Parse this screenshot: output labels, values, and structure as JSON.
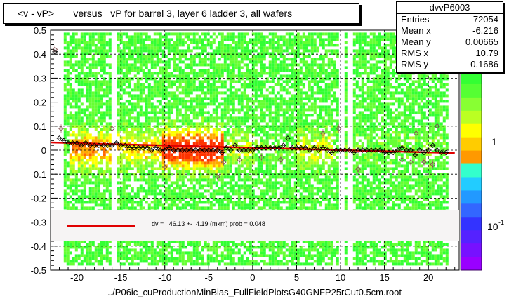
{
  "title": "<v - vP>       versus   vP for barrel 3, layer 6 ladder 3, all wafers",
  "stats": {
    "name": "dvvP6003",
    "rows": [
      {
        "label": "Entries",
        "value": "72054"
      },
      {
        "label": "Mean x",
        "value": "-6.216"
      },
      {
        "label": "Mean y",
        "value": "0.00665"
      },
      {
        "label": "RMS x",
        "value": "10.79"
      },
      {
        "label": "RMS y",
        "value": "0.1686"
      }
    ]
  },
  "fit": {
    "text": "dv =   46.13 +-  4.19 (mkm) prob = 0.048",
    "line_color": "#e00000"
  },
  "footer": "../P06ic_cuProductionMinBias_FullFieldPlotsG40GNFP25rCut0.5cm.root",
  "colorbar": {
    "labels": [
      "1",
      "10"
    ],
    "label_superscript": "-1"
  },
  "chart_data": {
    "type": "heatmap",
    "title": "<v - vP>       versus   vP for barrel 3, layer 6 ladder 3, all wafers",
    "xlabel": "",
    "ylabel": "",
    "xlim": [
      -23,
      23.5
    ],
    "ylim": [
      -0.5,
      0.5
    ],
    "xticks": [
      "-20",
      "-15",
      "-10",
      "-5",
      "0",
      "5",
      "10",
      "15",
      "20"
    ],
    "xtick_values": [
      -20,
      -15,
      -10,
      -5,
      0,
      5,
      10,
      15,
      20
    ],
    "yticks": [
      "0.5",
      "0.4",
      "0.3",
      "0.2",
      "0.1",
      "0",
      "-0.1",
      "-0.2",
      "-0.3",
      "-0.4",
      "-0.5"
    ],
    "ytick_values": [
      0.5,
      0.4,
      0.3,
      0.2,
      0.1,
      0,
      -0.1,
      -0.2,
      -0.3,
      -0.4,
      -0.5
    ],
    "grid": true,
    "heat_x_range": [
      -21.5,
      22
    ],
    "heat_y_range": [
      -0.48,
      0.49
    ],
    "heat_colors": [
      "#33ff33",
      "#66ff33",
      "#aaff22",
      "#ffff00",
      "#ffaa00",
      "#ff6600",
      "#ff3300"
    ],
    "fit_line": {
      "x": [
        -23,
        23
      ],
      "y": [
        0.032,
        -0.012
      ]
    },
    "profile": {
      "x": [
        -22.5,
        -22,
        -21.5,
        -21,
        -20.5,
        -20,
        -19.5,
        -19,
        -18.5,
        -18,
        -17.5,
        -17,
        -16.5,
        -16,
        -15.5,
        -15,
        -14.5,
        -14,
        -13.5,
        -13,
        -12.5,
        -12,
        -11.5,
        -11,
        -10.5,
        -10,
        -9.5,
        -9,
        -8.5,
        -8,
        -7.5,
        -7,
        -6.5,
        -6,
        -5.5,
        -5,
        -4.5,
        -4,
        -3.5,
        -3,
        -2.5,
        -2,
        -1.5,
        -1,
        -0.5,
        0,
        0.5,
        1,
        1.5,
        2,
        2.5,
        3,
        3.5,
        4,
        4.5,
        5,
        5.5,
        6,
        6.5,
        7,
        7.5,
        8,
        8.5,
        9,
        9.5,
        10,
        10.5,
        11,
        11.5,
        12,
        12.5,
        13,
        13.5,
        14,
        14.5,
        15,
        15.5,
        16,
        16.5,
        17,
        17.5,
        18,
        18.5,
        19,
        19.5,
        20,
        20.5,
        21,
        21.5,
        22
      ],
      "y": [
        0.41,
        0.05,
        0.04,
        0.03,
        0.03,
        0.03,
        0.02,
        0.03,
        0.02,
        0.02,
        0.02,
        0.02,
        0.02,
        0.02,
        0.03,
        0.02,
        0.02,
        0.01,
        0.01,
        0.01,
        0.01,
        0.01,
        0.0,
        0.01,
        0.0,
        0.0,
        0.01,
        0.0,
        0.0,
        0.0,
        0.0,
        0.0,
        0.0,
        0.0,
        0.0,
        0.0,
        0.0,
        0.0,
        -0.01,
        0.01,
        0.0,
        0.02,
        0.0,
        0.0,
        0.0,
        0.0,
        0.01,
        0.01,
        0.01,
        0.01,
        0.01,
        0.01,
        0.02,
        0.05,
        0.01,
        0.01,
        0.01,
        0.01,
        0.0,
        0.01,
        0.0,
        0.01,
        0.0,
        -0.01,
        0.0,
        0.0,
        0.0,
        0.0,
        -0.01,
        0.0,
        0.0,
        0.0,
        0.0,
        0.0,
        0.0,
        -0.01,
        -0.01,
        -0.01,
        0.0,
        0.01,
        0.0,
        0.0,
        -0.02,
        0.0,
        -0.01,
        0.0,
        0.02,
        0.0,
        -0.01,
        -0.01
      ]
    },
    "outliers": {
      "x": [
        -22.5,
        -21.8,
        -16,
        -10,
        -4,
        -3.3,
        -1.5,
        1,
        3.2,
        8,
        9.8,
        12,
        17,
        18,
        18.6,
        19.5,
        20.5,
        21
      ],
      "y": [
        0.42,
        0.09,
        0.09,
        -0.07,
        -0.11,
        -0.05,
        -0.04,
        -0.03,
        -0.04,
        0.07,
        0.09,
        -0.08,
        -0.04,
        -0.05,
        0.07,
        -0.05,
        -0.06,
        0.1
      ]
    }
  }
}
